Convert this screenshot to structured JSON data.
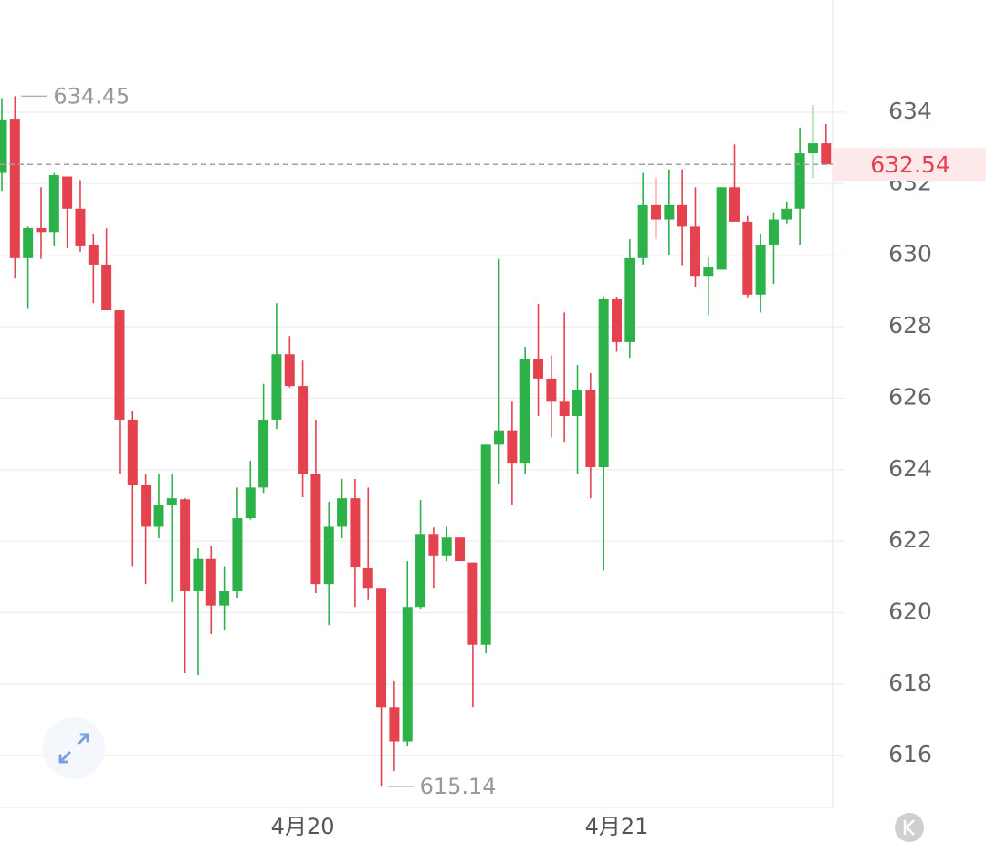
{
  "chart_data": {
    "type": "candlestick",
    "categories": [
      null,
      null,
      null,
      null,
      null,
      null,
      null,
      null,
      null,
      null,
      null,
      null,
      null,
      null,
      null,
      null,
      null,
      null,
      null,
      null,
      null,
      null,
      null,
      "4月20",
      null,
      null,
      null,
      null,
      null,
      null,
      null,
      null,
      null,
      null,
      null,
      null,
      null,
      null,
      null,
      null,
      null,
      null,
      null,
      null,
      null,
      null,
      null,
      "4月21",
      null,
      null,
      null,
      null,
      null,
      null,
      null,
      null,
      null,
      null,
      null,
      null,
      null,
      null,
      null,
      null
    ],
    "open": [
      632.3,
      633.82,
      629.92,
      630.76,
      630.65,
      632.2,
      631.3,
      630.3,
      629.74,
      628.46,
      625.4,
      623.56,
      622.4,
      623.0,
      623.17,
      620.6,
      621.5,
      620.2,
      620.6,
      622.64,
      623.5,
      625.4,
      627.23,
      626.34,
      623.87,
      620.8,
      622.4,
      623.2,
      621.24,
      620.67,
      617.35,
      616.4,
      620.16,
      622.2,
      621.6,
      622.1,
      621.4,
      619.1,
      624.7,
      625.1,
      624.17,
      627.1,
      626.55,
      625.9,
      625.5,
      626.24,
      624.07,
      628.77,
      627.57,
      629.92,
      631.4,
      631.0,
      631.4,
      630.8,
      629.4,
      629.6,
      631.9,
      630.94,
      628.9,
      630.3,
      631.0,
      631.3,
      632.85,
      633.13
    ],
    "high": [
      634.4,
      634.45,
      630.8,
      631.9,
      632.3,
      632.2,
      632.1,
      630.6,
      630.75,
      628.46,
      625.65,
      623.87,
      623.87,
      623.87,
      623.2,
      621.8,
      621.85,
      621.3,
      623.5,
      624.25,
      626.4,
      628.66,
      627.74,
      627.05,
      625.4,
      623.1,
      623.74,
      623.74,
      623.5,
      620.67,
      618.1,
      621.44,
      623.15,
      622.38,
      622.4,
      622.1,
      621.4,
      624.7,
      629.9,
      625.9,
      627.44,
      628.64,
      627.2,
      628.4,
      626.93,
      626.7,
      628.84,
      628.84,
      630.45,
      632.3,
      632.16,
      632.4,
      632.4,
      631.9,
      629.94,
      631.9,
      633.1,
      631.1,
      630.6,
      631.2,
      631.5,
      633.57,
      634.2,
      633.67
    ],
    "low": [
      631.8,
      629.35,
      628.5,
      629.9,
      630.25,
      630.2,
      630.1,
      628.66,
      628.46,
      623.87,
      621.3,
      620.8,
      622.08,
      620.3,
      618.3,
      618.25,
      619.4,
      619.5,
      620.4,
      622.6,
      623.35,
      625.14,
      626.3,
      623.23,
      620.55,
      619.65,
      622.08,
      620.16,
      620.35,
      615.14,
      615.57,
      616.26,
      620.1,
      620.67,
      621.44,
      621.44,
      617.35,
      618.86,
      623.6,
      623.0,
      623.87,
      625.5,
      624.9,
      624.76,
      623.87,
      623.2,
      621.18,
      627.3,
      627.13,
      629.74,
      630.45,
      630.0,
      629.7,
      629.1,
      628.33,
      629.6,
      630.94,
      628.8,
      628.4,
      629.2,
      630.9,
      630.3,
      632.16,
      632.54
    ],
    "close": [
      633.8,
      629.92,
      630.76,
      630.65,
      632.24,
      631.3,
      630.25,
      629.74,
      628.46,
      625.4,
      623.56,
      622.4,
      623.0,
      623.2,
      620.6,
      621.5,
      620.2,
      620.6,
      622.64,
      623.5,
      625.4,
      627.23,
      626.34,
      623.87,
      620.8,
      622.4,
      623.2,
      621.26,
      620.67,
      617.35,
      616.4,
      620.16,
      622.2,
      621.6,
      622.1,
      621.44,
      619.1,
      624.7,
      625.1,
      624.17,
      627.1,
      626.55,
      625.9,
      625.5,
      626.24,
      624.07,
      628.77,
      627.57,
      629.92,
      631.4,
      631.0,
      631.4,
      630.8,
      629.4,
      629.66,
      631.9,
      630.94,
      628.9,
      630.3,
      631.0,
      631.3,
      632.85,
      633.13,
      632.54
    ],
    "up_color": "#2db24a",
    "down_color": "#e5424f",
    "ylim": [
      614.55,
      637.14
    ],
    "yticks": [
      616,
      618,
      620,
      622,
      624,
      626,
      628,
      630,
      632,
      634
    ],
    "grid": true,
    "max_price": 634.45,
    "min_price": 615.14,
    "last_price": 632.54
  }
}
